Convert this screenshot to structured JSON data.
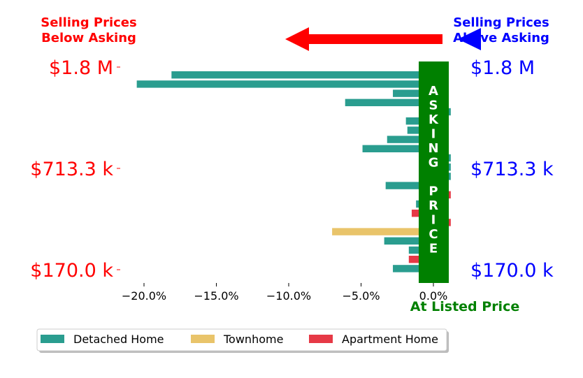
{
  "chart_data": {
    "type": "bar",
    "orientation": "horizontal",
    "xaxis": {
      "ticks": [
        -20,
        -15,
        -10,
        -5,
        0
      ],
      "tick_labels": [
        "−20.0%",
        "−15.0%",
        "−10.0%",
        "−5.0%",
        "0.0%"
      ],
      "xlim": [
        -22,
        1.5
      ]
    },
    "headers": {
      "left": [
        "Selling Prices",
        "Below Asking"
      ],
      "right": [
        "Selling Prices",
        "Above Asking"
      ],
      "left_color": "#ff0000",
      "right_color": "#0000ff"
    },
    "price_labels": {
      "values": [
        "$1.8 M",
        "$713.3 k",
        "$170.0 k"
      ],
      "left_color": "#ff0000",
      "right_color": "#0000ff"
    },
    "asking_price_label": "ASKING PRICE",
    "asking_price_letters": [
      "A",
      "S",
      "K",
      "I",
      "N",
      "G",
      "",
      "P",
      "R",
      "I",
      "C",
      "E"
    ],
    "asking_price_color": "#008000",
    "listed_label": "At Listed Price",
    "listed_color": "#008000",
    "arrows": [
      {
        "direction": "left",
        "color": "#ff0000"
      },
      {
        "direction": "right",
        "color": "#0000ff"
      }
    ],
    "series": [
      {
        "name": "Detached Home",
        "color": "#2a9d8f"
      },
      {
        "name": "Townhome",
        "color": "#e9c46a"
      },
      {
        "name": "Apartment Home",
        "color": "#e63946"
      }
    ],
    "bars": [
      {
        "value": -18.1,
        "series": 0
      },
      {
        "value": -20.5,
        "series": 0
      },
      {
        "value": -2.8,
        "series": 0
      },
      {
        "value": -6.1,
        "series": 0
      },
      {
        "value": 1.2,
        "series": 0
      },
      {
        "value": -1.9,
        "series": 0
      },
      {
        "value": -1.8,
        "series": 0
      },
      {
        "value": -3.2,
        "series": 0
      },
      {
        "value": -4.9,
        "series": 0
      },
      {
        "value": 1.2,
        "series": 0
      },
      {
        "value": 1.2,
        "series": 0
      },
      {
        "value": 1.2,
        "series": 0
      },
      {
        "value": -3.3,
        "series": 0
      },
      {
        "value": 1.2,
        "series": 2
      },
      {
        "value": -1.2,
        "series": 0
      },
      {
        "value": -1.5,
        "series": 2
      },
      {
        "value": 1.2,
        "series": 2
      },
      {
        "value": -7.0,
        "series": 1
      },
      {
        "value": -3.4,
        "series": 0
      },
      {
        "value": -1.7,
        "series": 0
      },
      {
        "value": -1.7,
        "series": 2
      },
      {
        "value": -2.8,
        "series": 0
      }
    ],
    "legend": {
      "placement": "bottom-left"
    }
  }
}
